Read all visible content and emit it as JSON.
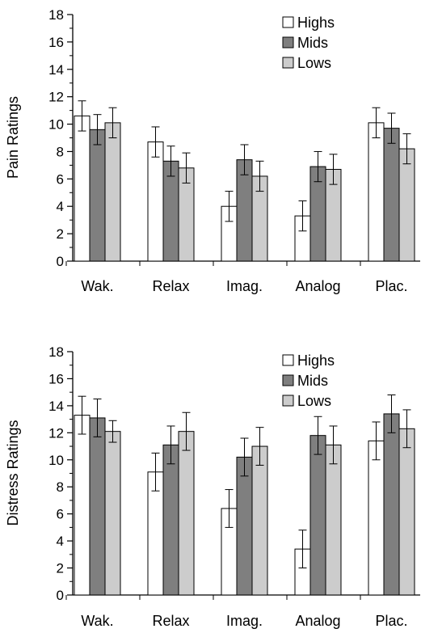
{
  "colors": {
    "Highs": "#ffffff",
    "Mids": "#7f7f7f",
    "Lows": "#cccccc",
    "stroke": "#000000"
  },
  "chart_data": [
    {
      "type": "bar",
      "categories": [
        "Wak.",
        "Relax",
        "Imag.",
        "Analog",
        "Plac."
      ],
      "ylabel": "Pain Ratings",
      "ylim": [
        0,
        18
      ],
      "yticks": [
        0,
        2,
        4,
        6,
        8,
        10,
        12,
        14,
        16,
        18
      ],
      "legend": {
        "placement": "top-center",
        "entries": [
          "Highs",
          "Mids",
          "Lows"
        ]
      },
      "series": [
        {
          "name": "Highs",
          "values": [
            10.6,
            8.7,
            4.0,
            3.3,
            10.1
          ],
          "errors": [
            1.1,
            1.1,
            1.1,
            1.1,
            1.1
          ]
        },
        {
          "name": "Mids",
          "values": [
            9.6,
            7.3,
            7.4,
            6.9,
            9.7
          ],
          "errors": [
            1.1,
            1.1,
            1.1,
            1.1,
            1.1
          ]
        },
        {
          "name": "Lows",
          "values": [
            10.1,
            6.8,
            6.2,
            6.7,
            8.2
          ],
          "errors": [
            1.1,
            1.1,
            1.1,
            1.1,
            1.1
          ]
        }
      ]
    },
    {
      "type": "bar",
      "categories": [
        "Wak.",
        "Relax",
        "Imag.",
        "Analog",
        "Plac."
      ],
      "ylabel": "Distress Ratings",
      "ylim": [
        0,
        18
      ],
      "yticks": [
        0,
        2,
        4,
        6,
        8,
        10,
        12,
        14,
        16,
        18
      ],
      "legend": {
        "placement": "top-center",
        "entries": [
          "Highs",
          "Mids",
          "Lows"
        ]
      },
      "series": [
        {
          "name": "Highs",
          "values": [
            13.3,
            9.1,
            6.4,
            3.4,
            11.4
          ],
          "errors": [
            1.4,
            1.4,
            1.4,
            1.4,
            1.4
          ]
        },
        {
          "name": "Mids",
          "values": [
            13.1,
            11.1,
            10.2,
            11.8,
            13.4
          ],
          "errors": [
            1.4,
            1.4,
            1.4,
            1.4,
            1.4
          ]
        },
        {
          "name": "Lows",
          "values": [
            12.1,
            12.1,
            11.0,
            11.1,
            12.3
          ],
          "errors": [
            0.8,
            1.4,
            1.4,
            1.4,
            1.4
          ]
        }
      ]
    }
  ]
}
